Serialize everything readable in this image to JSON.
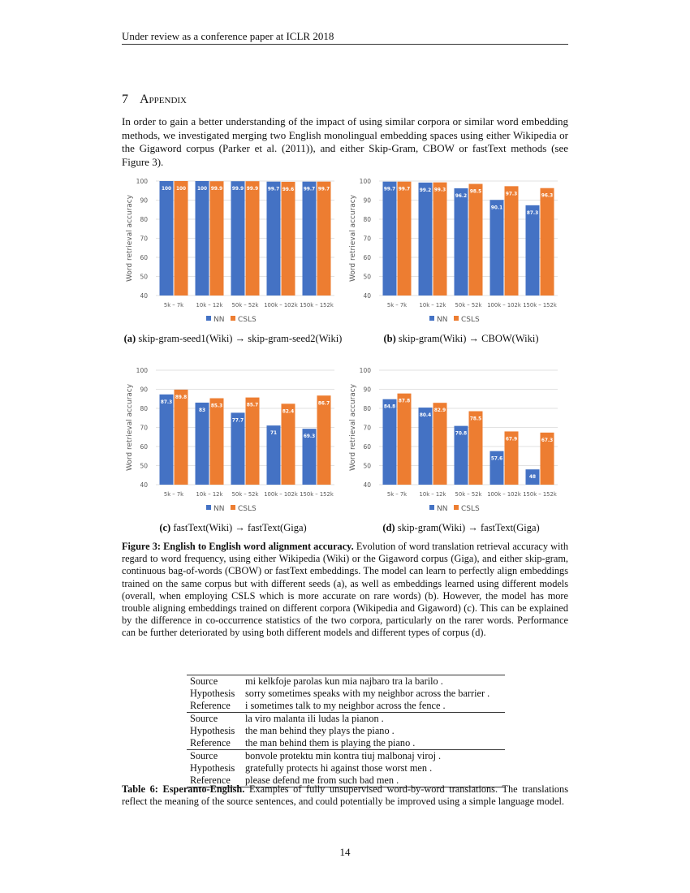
{
  "header": "Under review as a conference paper at ICLR 2018",
  "section": {
    "number": "7",
    "title": "Appendix"
  },
  "intro": "In order to gain a better understanding of the impact of using similar corpora or similar word embedding methods, we investigated merging two English monolingual embedding spaces using either Wikipedia or the Gigaword corpus (Parker et al. (2011)), and either Skip-Gram, CBOW or fastText methods (see Figure 3).",
  "colors": {
    "NN": "#4472C4",
    "CSLS": "#ED7D31"
  },
  "chart_data": [
    {
      "type": "bar",
      "subcaption_label": "(a)",
      "subcaption_text": "skip-gram-seed1(Wiki) → skip-gram-seed2(Wiki)",
      "ylabel": "Word retrieval accuracy",
      "ylim": [
        40,
        100
      ],
      "yticks": [
        40,
        50,
        60,
        70,
        80,
        90,
        100
      ],
      "grid": true,
      "legend": "bottom",
      "categories": [
        "5k – 7k",
        "10k – 12k",
        "50k – 52k",
        "100k – 102k",
        "150k – 152k"
      ],
      "series": [
        {
          "name": "NN",
          "values": [
            100,
            100,
            99.9,
            99.7,
            99.7
          ]
        },
        {
          "name": "CSLS",
          "values": [
            100,
            99.9,
            99.9,
            99.6,
            99.7
          ]
        }
      ]
    },
    {
      "type": "bar",
      "subcaption_label": "(b)",
      "subcaption_text": "skip-gram(Wiki) → CBOW(Wiki)",
      "ylabel": "Word retrieval accuracy",
      "ylim": [
        40,
        100
      ],
      "yticks": [
        40,
        50,
        60,
        70,
        80,
        90,
        100
      ],
      "grid": true,
      "legend": "bottom",
      "categories": [
        "5k – 7k",
        "10k – 12k",
        "50k – 52k",
        "100k – 102k",
        "150k – 152k"
      ],
      "series": [
        {
          "name": "NN",
          "values": [
            99.7,
            99.2,
            96.2,
            90.1,
            87.3
          ]
        },
        {
          "name": "CSLS",
          "values": [
            99.7,
            99.3,
            98.5,
            97.3,
            96.3
          ]
        }
      ]
    },
    {
      "type": "bar",
      "subcaption_label": "(c)",
      "subcaption_text": "fastText(Wiki) → fastText(Giga)",
      "ylabel": "Word retrieval accuracy",
      "ylim": [
        40,
        100
      ],
      "yticks": [
        40,
        50,
        60,
        70,
        80,
        90,
        100
      ],
      "grid": true,
      "legend": "bottom",
      "categories": [
        "5k – 7k",
        "10k – 12k",
        "50k – 52k",
        "100k – 102k",
        "150k – 152k"
      ],
      "series": [
        {
          "name": "NN",
          "values": [
            87.3,
            83,
            77.7,
            71,
            69.3
          ]
        },
        {
          "name": "CSLS",
          "values": [
            89.8,
            85.3,
            85.7,
            82.4,
            86.7
          ]
        }
      ]
    },
    {
      "type": "bar",
      "subcaption_label": "(d)",
      "subcaption_text": "skip-gram(Wiki) → fastText(Giga)",
      "ylabel": "Word retrieval accuracy",
      "ylim": [
        40,
        100
      ],
      "yticks": [
        40,
        50,
        60,
        70,
        80,
        90,
        100
      ],
      "grid": true,
      "legend": "bottom",
      "categories": [
        "5k – 7k",
        "10k – 12k",
        "50k – 52k",
        "100k – 102k",
        "150k – 152k"
      ],
      "series": [
        {
          "name": "NN",
          "values": [
            84.8,
            80.4,
            70.8,
            57.6,
            48
          ]
        },
        {
          "name": "CSLS",
          "values": [
            87.8,
            82.9,
            78.5,
            67.9,
            67.3
          ]
        }
      ]
    }
  ],
  "figure_caption": {
    "label": "Figure 3:",
    "title": "English to English word alignment accuracy.",
    "text": " Evolution of word translation retrieval accuracy with regard to word frequency, using either Wikipedia (Wiki) or the Gigaword corpus (Giga), and either skip-gram, continuous bag-of-words (CBOW) or fastText embeddings. The model can learn to perfectly align embeddings trained on the same corpus but with different seeds (a), as well as embeddings learned using different models (overall, when employing CSLS which is more accurate on rare words) (b). However, the model has more trouble aligning embeddings trained on different corpora (Wikipedia and Gigaword) (c). This can be explained by the difference in co-occurrence statistics of the two corpora, particularly on the rarer words. Performance can be further deteriorated by using both different models and different types of corpus (d)."
  },
  "table": {
    "rows": [
      [
        "Source",
        "mi kelkfoje parolas kun mia najbaro tra la barilo ."
      ],
      [
        "Hypothesis",
        "sorry sometimes speaks with my neighbor across the barrier ."
      ],
      [
        "Reference",
        "i sometimes talk to my neighbor across the fence ."
      ],
      [
        "Source",
        "la viro malanta ili ludas la pianon ."
      ],
      [
        "Hypothesis",
        "the man behind they plays the piano ."
      ],
      [
        "Reference",
        "the man behind them is playing the piano ."
      ],
      [
        "Source",
        "bonvole protektu min kontra tiuj malbonaj viroj ."
      ],
      [
        "Hypothesis",
        "gratefully protects hi against those worst men ."
      ],
      [
        "Reference",
        "please defend me from such bad men ."
      ]
    ],
    "caption": {
      "label": "Table 6:",
      "title": "Esperanto-English.",
      "text": " Examples of fully unsupervised word-by-word translations. The translations reflect the meaning of the source sentences, and could potentially be improved using a simple language model."
    }
  },
  "page_number": "14"
}
